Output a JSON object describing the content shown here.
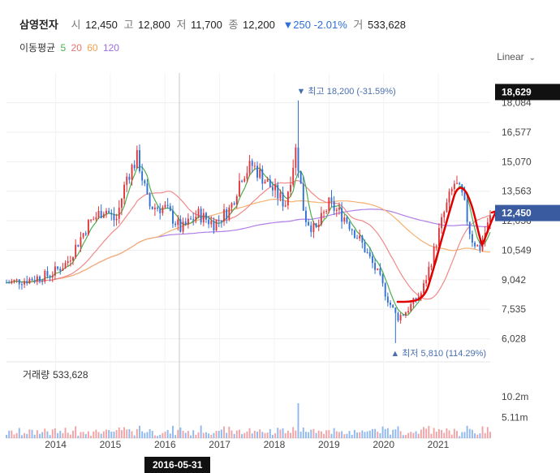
{
  "header": {
    "name": "삼영전자",
    "open_label": "시",
    "open": "12,450",
    "high_label": "고",
    "high": "12,800",
    "low_label": "저",
    "low": "11,700",
    "close_label": "종",
    "close": "12,200",
    "change": "▼250 -2.01%",
    "volume_label": "거",
    "volume": "533,628"
  },
  "ma_legend": {
    "label": "이동평균",
    "items": [
      {
        "text": "5",
        "color": "#4caf50"
      },
      {
        "text": "20",
        "color": "#e57373"
      },
      {
        "text": "60",
        "color": "#f0a050"
      },
      {
        "text": "120",
        "color": "#9a6ce0"
      }
    ]
  },
  "scale_mode": "Linear",
  "volume_panel": {
    "label": "거래량",
    "value": "533,628"
  },
  "crosshair_date": "2016-05-31",
  "colors": {
    "up": "#e0363c",
    "down": "#2f6fd6",
    "up_vol": "#f2a2a5",
    "down_vol": "#8fb8ee",
    "ma5": "#4caf50",
    "ma20": "#f08a8a",
    "ma60": "#f5b070",
    "ma120": "#b07ee8",
    "annotation": "#e00000",
    "price_tag": "#3a5ba0",
    "current_tag": "#111111"
  },
  "chart_data": {
    "type": "candlestick",
    "y_ticks": [
      "18,084",
      "16,577",
      "15,070",
      "13,563",
      "12,056",
      "10,549",
      "9,042",
      "7,535",
      "6,028"
    ],
    "y_tick_values": [
      18084,
      16577,
      15070,
      13563,
      12056,
      10549,
      9042,
      7535,
      6028
    ],
    "ylim": [
      5100,
      19600
    ],
    "x_ticks": [
      "2014",
      "2015",
      "2016",
      "2017",
      "2018",
      "2019",
      "2020",
      "2021"
    ],
    "x_tick_years": [
      2014,
      2015,
      2016,
      2017,
      2018,
      2019,
      2020,
      2021
    ],
    "xlim": [
      2013.1,
      2021.95
    ],
    "volume_ticks": [
      "10.2m",
      "5.11m"
    ],
    "volume_tick_values": [
      10200000,
      5110000
    ],
    "volume_ylim": [
      0,
      14000000
    ],
    "current_price": {
      "value": 18629,
      "label": "18,629"
    },
    "last_price": {
      "value": 12450,
      "label": "12,450"
    },
    "max_annotation": {
      "value": 18200,
      "label": "최고 18,200 (-31.59%)"
    },
    "min_annotation": {
      "value": 5810,
      "label": "최저 5,810 (114.29%)"
    },
    "anchors_t": [
      2013.1,
      2013.5,
      2013.9,
      2014.2,
      2014.6,
      2014.9,
      2015.1,
      2015.3,
      2015.5,
      2015.7,
      2016.0,
      2016.3,
      2016.6,
      2016.9,
      2017.2,
      2017.4,
      2017.6,
      2017.9,
      2018.2,
      2018.4,
      2018.55,
      2018.75,
      2019.0,
      2019.3,
      2019.6,
      2019.9,
      2020.1,
      2020.25,
      2020.4,
      2020.7,
      2020.9,
      2021.1,
      2021.3,
      2021.45,
      2021.6,
      2021.75,
      2021.95
    ],
    "anchors_price": [
      8900,
      9050,
      9300,
      9900,
      11900,
      12700,
      12000,
      14300,
      15300,
      12800,
      12700,
      11600,
      12400,
      11900,
      12700,
      14400,
      14900,
      13900,
      12900,
      15800,
      12300,
      11500,
      12900,
      12200,
      10900,
      9300,
      7900,
      7100,
      7400,
      8400,
      10300,
      12400,
      14000,
      13200,
      11200,
      10600,
      12200
    ]
  }
}
